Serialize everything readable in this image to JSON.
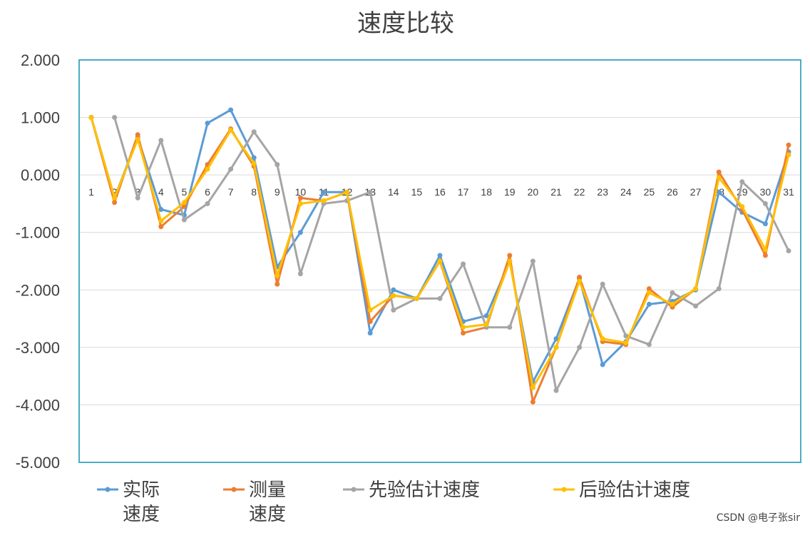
{
  "chart_data": {
    "type": "line",
    "title": "速度比较",
    "xlabel": "",
    "ylabel": "",
    "ylim": [
      -5,
      2
    ],
    "y_tick_step": 1,
    "y_tick_labels": [
      "2.000",
      "1.000",
      "0.000",
      "-1.000",
      "-2.000",
      "-3.000",
      "-4.000",
      "-5.000"
    ],
    "categories": [
      "1",
      "2",
      "3",
      "4",
      "5",
      "6",
      "7",
      "8",
      "9",
      "10",
      "11",
      "12",
      "13",
      "14",
      "15",
      "16",
      "17",
      "18",
      "19",
      "20",
      "21",
      "22",
      "23",
      "24",
      "25",
      "26",
      "27",
      "28",
      "29",
      "30",
      "31"
    ],
    "grid": true,
    "legend_position": "bottom",
    "series": [
      {
        "name": "实际速度",
        "legend_lines": [
          "实际",
          "速度"
        ],
        "color": "#5B9BD5",
        "values": [
          1.0,
          -0.4,
          0.65,
          -0.6,
          -0.7,
          0.9,
          1.13,
          0.3,
          -1.6,
          -1.0,
          -0.3,
          -0.3,
          -2.75,
          -2.0,
          -2.15,
          -1.4,
          -2.55,
          -2.45,
          -1.5,
          -3.6,
          -2.85,
          -1.8,
          -3.3,
          -2.9,
          -2.25,
          -2.2,
          -2.0,
          -0.3,
          -0.65,
          -0.85,
          0.4
        ]
      },
      {
        "name": "测量速度",
        "legend_lines": [
          "测量",
          "速度"
        ],
        "color": "#ED7D31",
        "values": [
          1.0,
          -0.48,
          0.7,
          -0.9,
          -0.55,
          0.18,
          0.8,
          0.15,
          -1.9,
          -0.4,
          -0.45,
          -0.3,
          -2.55,
          -2.1,
          -2.15,
          -1.5,
          -2.75,
          -2.65,
          -1.4,
          -3.95,
          -3.0,
          -1.78,
          -2.9,
          -2.95,
          -1.98,
          -2.3,
          -1.98,
          0.05,
          -0.6,
          -1.4,
          0.52
        ]
      },
      {
        "name": "先验估计速度",
        "legend_lines": [
          "先验估计速度"
        ],
        "color": "#A5A5A5",
        "values": [
          null,
          1.0,
          -0.4,
          0.6,
          -0.78,
          -0.5,
          0.1,
          0.75,
          0.18,
          -1.72,
          -0.5,
          -0.45,
          -0.3,
          -2.35,
          -2.15,
          -2.15,
          -1.55,
          -2.65,
          -2.65,
          -1.5,
          -3.75,
          -3.0,
          -1.9,
          -2.8,
          -2.95,
          -2.05,
          -2.28,
          -1.98,
          -0.12,
          -0.5,
          -1.32
        ]
      },
      {
        "name": "后验估计速度",
        "legend_lines": [
          "后验估计速度"
        ],
        "color": "#FFC000",
        "values": [
          1.0,
          -0.4,
          0.62,
          -0.8,
          -0.48,
          0.1,
          0.78,
          0.2,
          -1.75,
          -0.5,
          -0.45,
          -0.3,
          -2.35,
          -2.1,
          -2.15,
          -1.5,
          -2.65,
          -2.6,
          -1.5,
          -3.7,
          -3.0,
          -1.85,
          -2.85,
          -2.92,
          -2.05,
          -2.25,
          -1.98,
          -0.05,
          -0.55,
          -1.3,
          0.35
        ]
      }
    ]
  },
  "watermark": "CSDN @电子张sir"
}
